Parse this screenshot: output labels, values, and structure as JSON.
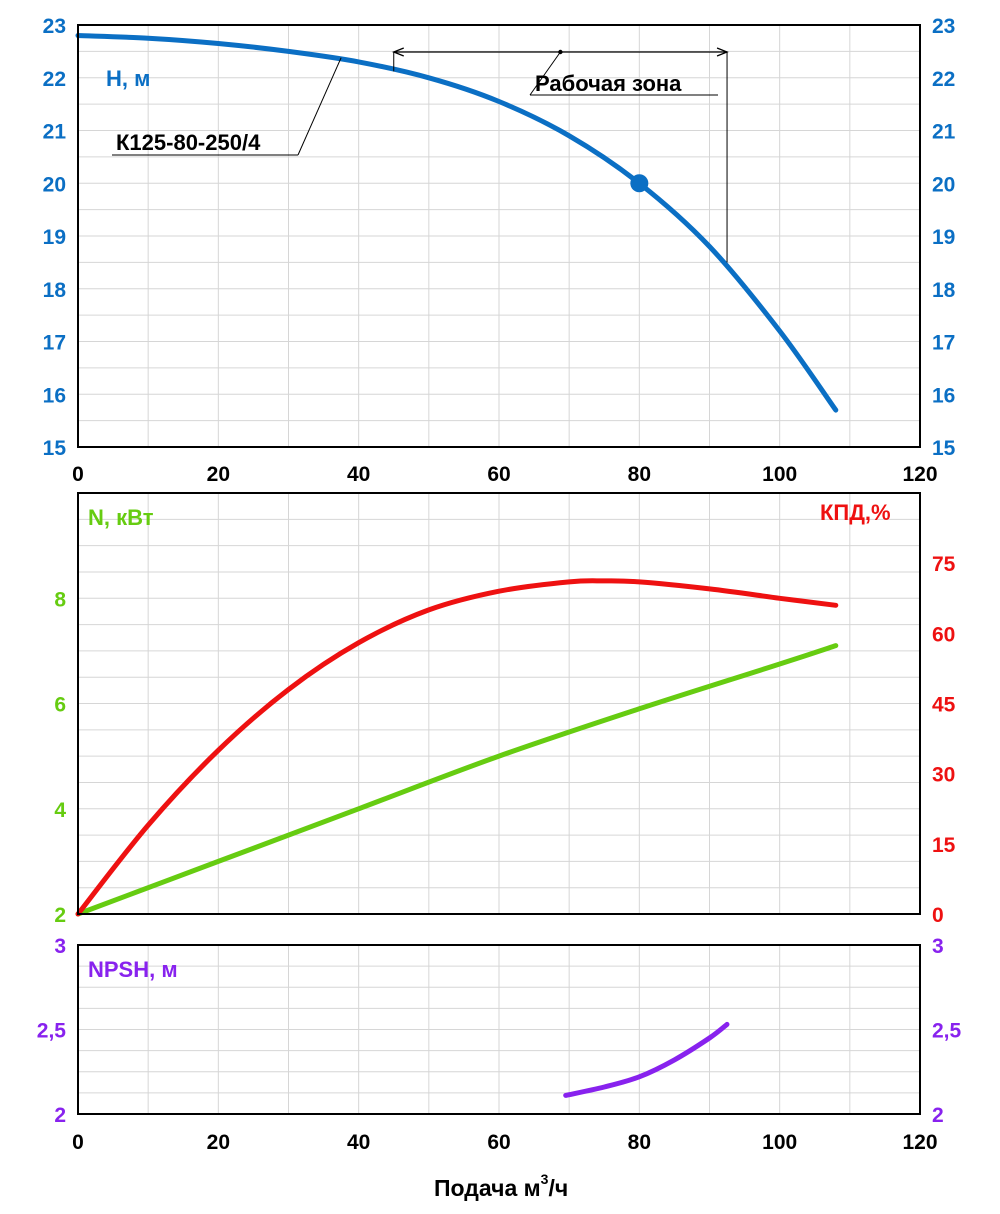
{
  "chart_data": [
    {
      "type": "line",
      "panel": "head",
      "xlabel": "",
      "ylabel": "H, м",
      "xlim": [
        0,
        120
      ],
      "ylim": [
        15,
        23
      ],
      "x_ticks": [
        "0",
        "20",
        "40",
        "60",
        "80",
        "100",
        "120"
      ],
      "y_ticks_left": [
        "15",
        "16",
        "17",
        "18",
        "19",
        "20",
        "21",
        "22",
        "23"
      ],
      "y_ticks_right": [
        "15",
        "16",
        "17",
        "18",
        "19",
        "20",
        "21",
        "22",
        "23"
      ],
      "series": [
        {
          "name": "К125-80-250/4",
          "color": "#0b6fc4",
          "x": [
            0,
            10,
            20,
            30,
            40,
            50,
            60,
            70,
            80,
            90,
            100,
            108
          ],
          "y": [
            22.8,
            22.75,
            22.65,
            22.5,
            22.3,
            22.0,
            21.55,
            20.9,
            20.0,
            18.8,
            17.2,
            15.7
          ]
        }
      ],
      "marker": {
        "x": 80,
        "y": 20.0,
        "color": "#0b6fc4"
      },
      "annotations": {
        "working_zone": {
          "label": "Рабочая зона",
          "x_start": 45,
          "x_end": 92.5
        },
        "curve_label": "К125-80-250/4"
      }
    },
    {
      "type": "line",
      "panel": "power_efficiency",
      "xlim": [
        0,
        120
      ],
      "ylim_left": [
        2,
        10
      ],
      "ylim_right": [
        0,
        90
      ],
      "ylabel_left": "N, кВт",
      "ylabel_right": "КПД,%",
      "y_ticks_left": [
        "2",
        "4",
        "6",
        "8"
      ],
      "y_ticks_right": [
        "0",
        "15",
        "30",
        "45",
        "60",
        "75"
      ],
      "series": [
        {
          "name": "N",
          "axis": "left",
          "color": "#66cc11",
          "x": [
            0,
            20,
            40,
            60,
            80,
            100,
            108
          ],
          "y": [
            2.0,
            3.0,
            4.0,
            5.0,
            5.9,
            6.75,
            7.1
          ]
        },
        {
          "name": "КПД",
          "axis": "right",
          "color": "#ee1111",
          "x": [
            0,
            10,
            20,
            30,
            40,
            50,
            60,
            70,
            75,
            80,
            90,
            100,
            108
          ],
          "y": [
            0,
            19,
            35,
            48,
            58,
            65,
            69,
            71,
            71.2,
            71,
            69.5,
            67.5,
            66
          ]
        }
      ]
    },
    {
      "type": "line",
      "panel": "npsh",
      "xlabel": "Подача м³/ч",
      "xlim": [
        0,
        120
      ],
      "ylim": [
        2,
        3
      ],
      "ylabel": "NPSH, м",
      "x_ticks": [
        "0",
        "20",
        "40",
        "60",
        "80",
        "100",
        "120"
      ],
      "y_ticks_left": [
        "2",
        "2,5",
        "3"
      ],
      "y_ticks_right": [
        "2",
        "2,5",
        "3"
      ],
      "series": [
        {
          "name": "NPSH",
          "color": "#8822ee",
          "x": [
            69.5,
            75,
            80,
            85,
            90,
            92.5
          ],
          "y": [
            2.11,
            2.16,
            2.22,
            2.32,
            2.45,
            2.53
          ]
        }
      ]
    }
  ],
  "labels": {
    "head_axis": "H, м",
    "power_axis": "N, кВт",
    "efficiency_axis": "КПД,%",
    "npsh_axis": "NPSH, м",
    "working_zone": "Рабочая зона",
    "pump_model": "К125-80-250/4",
    "x_axis_main": "Подача м",
    "x_axis_sup": "3",
    "x_axis_unit": "/ч"
  }
}
